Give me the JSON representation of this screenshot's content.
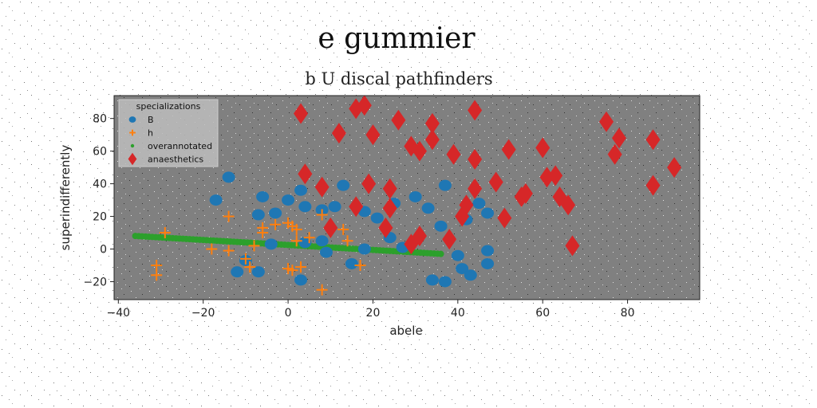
{
  "chart_data": {
    "type": "scatter",
    "title": "e gummier",
    "subtitle": "b U discal pathfinders",
    "xlabel": "abele",
    "ylabel": "superindifferently",
    "xlim": [
      -41,
      97
    ],
    "ylim": [
      -31,
      94
    ],
    "xticks": [
      -40,
      -20,
      0,
      20,
      40,
      60,
      80
    ],
    "yticks": [
      -20,
      0,
      20,
      40,
      60,
      80
    ],
    "grid": false,
    "legend": {
      "title": "specializations",
      "position": "top-left"
    },
    "colors": {
      "background": "#808080",
      "B": "#1f77b4",
      "h": "#ff7f0e",
      "overannotated": "#2ca02c",
      "anaesthetics": "#d62728"
    },
    "series": [
      {
        "name": "B",
        "marker": "circle",
        "points": [
          [
            -14,
            44
          ],
          [
            -17,
            30
          ],
          [
            -7,
            21
          ],
          [
            -6,
            32
          ],
          [
            -3,
            22
          ],
          [
            0,
            30
          ],
          [
            3,
            36
          ],
          [
            4,
            26
          ],
          [
            8,
            24
          ],
          [
            11,
            26
          ],
          [
            13,
            39
          ],
          [
            18,
            23
          ],
          [
            21,
            19
          ],
          [
            25,
            28
          ],
          [
            30,
            32
          ],
          [
            33,
            25
          ],
          [
            36,
            14
          ],
          [
            37,
            39
          ],
          [
            42,
            18
          ],
          [
            40,
            -4
          ],
          [
            41,
            -12
          ],
          [
            43,
            -16
          ],
          [
            45,
            28
          ],
          [
            47,
            22
          ],
          [
            47,
            -1
          ],
          [
            47,
            -9
          ],
          [
            34,
            -19
          ],
          [
            37,
            -20
          ],
          [
            -12,
            -14
          ],
          [
            -7,
            -14
          ],
          [
            -10,
            -7
          ],
          [
            3,
            -19
          ],
          [
            8,
            5
          ],
          [
            9,
            -2
          ],
          [
            15,
            -9
          ],
          [
            18,
            0
          ],
          [
            -4,
            3
          ],
          [
            4,
            4
          ],
          [
            27,
            1
          ],
          [
            24,
            7
          ]
        ]
      },
      {
        "name": "h",
        "marker": "plus",
        "points": [
          [
            -31,
            -10
          ],
          [
            -31,
            -16
          ],
          [
            -29,
            10
          ],
          [
            -18,
            0
          ],
          [
            -14,
            20
          ],
          [
            -14,
            -1
          ],
          [
            -10,
            -6
          ],
          [
            -9,
            -11
          ],
          [
            -6,
            10
          ],
          [
            -6,
            13
          ],
          [
            -3,
            15
          ],
          [
            0,
            16
          ],
          [
            1,
            14
          ],
          [
            2,
            12
          ],
          [
            0,
            -12
          ],
          [
            1,
            -13
          ],
          [
            3,
            -11
          ],
          [
            8,
            21
          ],
          [
            8,
            -25
          ],
          [
            13,
            12
          ],
          [
            14,
            5
          ],
          [
            17,
            -10
          ],
          [
            2,
            5
          ],
          [
            -8,
            2
          ],
          [
            5,
            7
          ]
        ]
      },
      {
        "name": "overannotated",
        "marker": "dot",
        "line": {
          "x0": -36,
          "y0": 8,
          "x1": 36,
          "y1": -3
        }
      },
      {
        "name": "anaesthetics",
        "marker": "diamond",
        "points": [
          [
            3,
            83
          ],
          [
            16,
            86
          ],
          [
            18,
            88
          ],
          [
            12,
            71
          ],
          [
            20,
            70
          ],
          [
            26,
            79
          ],
          [
            34,
            77
          ],
          [
            34,
            67
          ],
          [
            29,
            63
          ],
          [
            31,
            60
          ],
          [
            39,
            58
          ],
          [
            44,
            85
          ],
          [
            44,
            55
          ],
          [
            52,
            61
          ],
          [
            60,
            62
          ],
          [
            61,
            44
          ],
          [
            63,
            45
          ],
          [
            49,
            41
          ],
          [
            55,
            32
          ],
          [
            56,
            34
          ],
          [
            64,
            32
          ],
          [
            66,
            27
          ],
          [
            67,
            2
          ],
          [
            75,
            78
          ],
          [
            77,
            58
          ],
          [
            78,
            68
          ],
          [
            86,
            67
          ],
          [
            86,
            39
          ],
          [
            91,
            50
          ],
          [
            4,
            46
          ],
          [
            8,
            38
          ],
          [
            10,
            13
          ],
          [
            16,
            26
          ],
          [
            19,
            40
          ],
          [
            23,
            13
          ],
          [
            24,
            25
          ],
          [
            24,
            37
          ],
          [
            29,
            3
          ],
          [
            31,
            8
          ],
          [
            38,
            6
          ],
          [
            41,
            20
          ],
          [
            42,
            27
          ],
          [
            44,
            37
          ],
          [
            51,
            19
          ]
        ]
      }
    ]
  }
}
